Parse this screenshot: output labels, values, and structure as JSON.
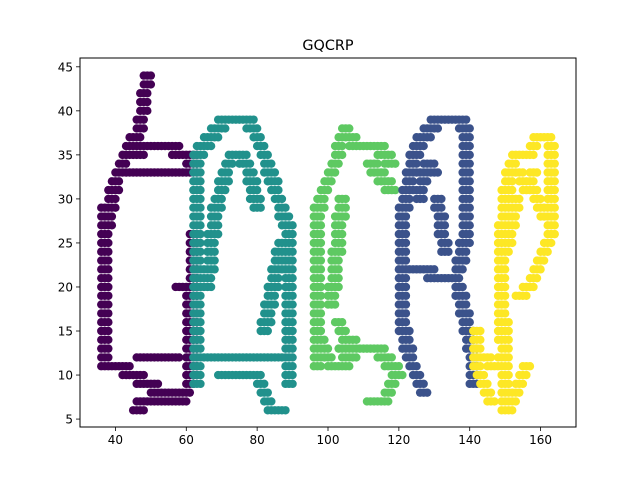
{
  "chart_data": {
    "type": "scatter",
    "title": "GQCRP",
    "xlabel": "",
    "ylabel": "",
    "xlim": [
      30,
      170
    ],
    "ylim": [
      4.1,
      46
    ],
    "xticks": [
      40,
      60,
      80,
      100,
      120,
      140,
      160
    ],
    "yticks": [
      5,
      10,
      15,
      20,
      25,
      30,
      35,
      40,
      45
    ],
    "grid": false,
    "legend": "none",
    "marker": "circle",
    "series": [
      {
        "color": "#440154",
        "strokes": [
          {
            "x": [
              49,
              48,
              47,
              46,
              45,
              44,
              43,
              42,
              41,
              40,
              39,
              38,
              37
            ],
            "y": [
              44,
              41,
              38,
              37,
              37,
              36,
              35,
              34,
              33,
              32,
              30,
              28,
              26
            ]
          },
          {
            "x": [
              37,
              37,
              37,
              37,
              37,
              37,
              37,
              37
            ],
            "y": [
              29,
              26,
              23,
              20,
              17,
              14,
              12,
              11
            ]
          },
          {
            "x": [
              37,
              38,
              40,
              42,
              44,
              46,
              48,
              50,
              52,
              54,
              56,
              58,
              60,
              61
            ],
            "y": [
              11,
              11,
              11,
              11,
              10,
              10,
              9,
              9,
              8,
              8,
              7,
              7,
              8,
              9
            ]
          },
          {
            "x": [
              61,
              61,
              61,
              61,
              61,
              61,
              61
            ],
            "y": [
              9,
              11,
              13,
              15,
              17,
              19,
              20
            ]
          },
          {
            "x": [
              58,
              59,
              60,
              61
            ],
            "y": [
              20,
              20,
              20,
              20
            ]
          },
          {
            "x": [
              62,
              62,
              62,
              62,
              62
            ],
            "y": [
              10,
              14,
              18,
              22,
              26
            ]
          },
          {
            "x": [
              44,
              46,
              48,
              50,
              52,
              54,
              56,
              58,
              60,
              62
            ],
            "y": [
              35,
              35,
              36,
              36,
              36,
              36,
              36,
              35,
              35,
              34
            ]
          },
          {
            "x": [
              62,
              62,
              62
            ],
            "y": [
              35,
              34,
              33
            ]
          },
          {
            "x": [
              43,
              45,
              47,
              49,
              51,
              53,
              55,
              57,
              59,
              61
            ],
            "y": [
              33,
              33,
              33,
              33,
              33,
              33,
              33,
              33,
              33,
              33
            ]
          },
          {
            "x": [
              47,
              49,
              51,
              53,
              55,
              57
            ],
            "y": [
              12,
              12,
              12,
              12,
              12,
              12
            ]
          },
          {
            "x": [
              46,
              48,
              50,
              52,
              54,
              56,
              58
            ],
            "y": [
              6,
              7,
              7,
              7,
              7,
              7,
              8
            ]
          }
        ]
      },
      {
        "color": "#21918c",
        "strokes": [
          {
            "x": [
              63,
              63,
              63,
              63,
              63,
              63,
              63,
              63,
              63,
              63
            ],
            "y": [
              9,
              12,
              15,
              18,
              21,
              24,
              27,
              30,
              33,
              35
            ]
          },
          {
            "x": [
              63,
              65,
              67,
              69,
              71,
              73,
              75,
              77
            ],
            "y": [
              35,
              36,
              37,
              38,
              39,
              39,
              39,
              39
            ]
          },
          {
            "x": [
              77,
              79,
              81,
              83,
              85,
              87,
              89
            ],
            "y": [
              39,
              38,
              36,
              34,
              31,
              29,
              26
            ]
          },
          {
            "x": [
              89,
              89,
              89,
              89,
              89,
              89,
              89
            ],
            "y": [
              26,
              23,
              20,
              17,
              14,
              12,
              9
            ]
          },
          {
            "x": [
              65,
              67,
              69,
              71,
              73,
              75,
              77,
              79,
              81,
              83,
              85,
              87,
              88
            ],
            "y": [
              12,
              12,
              12,
              12,
              12,
              12,
              12,
              12,
              12,
              12,
              12,
              12,
              12
            ]
          },
          {
            "x": [
              70,
              72,
              74,
              76,
              78,
              80
            ],
            "y": [
              10,
              10,
              10,
              10,
              10,
              10
            ]
          },
          {
            "x": [
              80,
              81,
              82,
              83,
              84,
              85,
              86,
              87
            ],
            "y": [
              10,
              9,
              8,
              7,
              6,
              6,
              6,
              6
            ]
          },
          {
            "x": [
              70,
              71,
              72,
              73,
              74,
              75
            ],
            "y": [
              31,
              33,
              34,
              35,
              35,
              35
            ]
          },
          {
            "x": [
              75,
              77,
              78,
              79,
              80
            ],
            "y": [
              35,
              34,
              33,
              31,
              29
            ]
          },
          {
            "x": [
              82,
              83,
              84,
              85,
              86,
              87
            ],
            "y": [
              15,
              17,
              19,
              21,
              23,
              25
            ]
          },
          {
            "x": [
              66,
              67,
              68,
              69
            ],
            "y": [
              20,
              24,
              28,
              30
            ]
          }
        ]
      },
      {
        "color": "#5ec962",
        "strokes": [
          {
            "x": [
              97,
              97,
              97,
              97,
              97,
              97,
              97,
              97,
              97
            ],
            "y": [
              11,
              13,
              15,
              17,
              19,
              21,
              23,
              25,
              27
            ]
          },
          {
            "x": [
              97,
              98,
              99,
              100,
              101,
              102,
              103
            ],
            "y": [
              28,
              30,
              31,
              32,
              33,
              34,
              35
            ]
          },
          {
            "x": [
              103,
              104,
              105,
              106,
              108,
              110,
              112,
              114,
              116,
              118
            ],
            "y": [
              36,
              37,
              38,
              37,
              36,
              36,
              36,
              36,
              35,
              34
            ]
          },
          {
            "x": [
              112,
              114,
              116,
              118
            ],
            "y": [
              34,
              33,
              32,
              31
            ]
          },
          {
            "x": [
              98,
              99,
              100,
              101,
              102,
              104,
              106,
              108
            ],
            "y": [
              14,
              13,
              12,
              11,
              11,
              11,
              12,
              13
            ]
          },
          {
            "x": [
              104,
              106,
              108,
              110,
              112,
              114,
              116,
              118,
              120
            ],
            "y": [
              13,
              13,
              13,
              13,
              13,
              13,
              12,
              11,
              10
            ]
          },
          {
            "x": [
              112,
              113,
              114,
              115,
              116,
              117,
              118
            ],
            "y": [
              7,
              7,
              7,
              7,
              7,
              8,
              9
            ]
          },
          {
            "x": [
              101,
              102,
              103,
              104
            ],
            "y": [
              18,
              22,
              26,
              30
            ]
          },
          {
            "x": [
              103,
              104,
              105,
              106,
              107
            ],
            "y": [
              16,
              15,
              14,
              14,
              14
            ]
          }
        ]
      },
      {
        "color": "#3b528b",
        "strokes": [
          {
            "x": [
              125,
              124,
              123,
              122,
              121,
              121,
              121,
              121,
              121,
              121,
              121
            ],
            "y": [
              36,
              34,
              32,
              30,
              28,
              26,
              24,
              22,
              20,
              18,
              16
            ]
          },
          {
            "x": [
              121,
              122,
              123,
              124,
              125,
              126,
              127
            ],
            "y": [
              16,
              14,
              12,
              11,
              10,
              9,
              8
            ]
          },
          {
            "x": [
              125,
              127,
              129,
              131,
              133,
              135,
              137,
              139
            ],
            "y": [
              36,
              37,
              38,
              39,
              39,
              39,
              39,
              38
            ]
          },
          {
            "x": [
              139,
              139,
              139,
              139,
              139,
              138,
              137,
              136
            ],
            "y": [
              38,
              35,
              32,
              29,
              26,
              24,
              22,
              21
            ]
          },
          {
            "x": [
              122,
              124,
              126,
              128,
              130,
              132,
              134,
              136
            ],
            "y": [
              22,
              22,
              22,
              22,
              21,
              21,
              21,
              21
            ]
          },
          {
            "x": [
              136,
              137,
              138,
              139,
              140,
              141,
              141,
              141
            ],
            "y": [
              21,
              20,
              18,
              16,
              14,
              12,
              10,
              9
            ]
          },
          {
            "x": [
              126,
              127,
              128,
              129,
              130
            ],
            "y": [
              30,
              33,
              34,
              34,
              33
            ]
          },
          {
            "x": [
              131,
              132,
              133
            ],
            "y": [
              30,
              27,
              24
            ]
          }
        ]
      },
      {
        "color": "#fde725",
        "strokes": [
          {
            "x": [
              142,
              142,
              142,
              143,
              144,
              145,
              146
            ],
            "y": [
              15,
              13,
              11,
              10,
              9,
              8,
              7
            ]
          },
          {
            "x": [
              144,
              145,
              146,
              147,
              148,
              149,
              150
            ],
            "y": [
              12,
              12,
              11,
              11,
              11,
              12,
              13
            ]
          },
          {
            "x": [
              149,
              149,
              149,
              149,
              149,
              150
            ],
            "y": [
              14,
              17,
              20,
              23,
              26,
              29
            ]
          },
          {
            "x": [
              150,
              150,
              150,
              150,
              150,
              150
            ],
            "y": [
              6,
              8,
              10,
              12,
              14,
              16
            ]
          },
          {
            "x": [
              151,
              152,
              153,
              154,
              155,
              156
            ],
            "y": [
              6,
              7,
              8,
              9,
              10,
              11
            ]
          },
          {
            "x": [
              150,
              151,
              152,
              153,
              154,
              155,
              156,
              157,
              158,
              159,
              160,
              161,
              162,
              163
            ],
            "y": [
              30,
              32,
              34,
              35,
              35,
              35,
              35,
              35,
              36,
              37,
              37,
              37,
              37,
              36
            ]
          },
          {
            "x": [
              163,
              163,
              163,
              163,
              163
            ],
            "y": [
              36,
              33,
              30,
              28,
              26
            ]
          },
          {
            "x": [
              163,
              162,
              161,
              160,
              159,
              158,
              157,
              156,
              155,
              154
            ],
            "y": [
              26,
              25,
              24,
              23,
              22,
              21,
              20,
              20,
              19,
              19
            ]
          },
          {
            "x": [
              151,
              152,
              153,
              154,
              155,
              156,
              157,
              158
            ],
            "y": [
              33,
              33,
              33,
              33,
              32,
              31,
              32,
              33
            ]
          },
          {
            "x": [
              158,
              159,
              160,
              161
            ],
            "y": [
              31,
              30,
              29,
              28
            ]
          },
          {
            "x": [
              150,
              151,
              152,
              153
            ],
            "y": [
              24,
              26,
              28,
              30
            ]
          }
        ]
      }
    ]
  }
}
